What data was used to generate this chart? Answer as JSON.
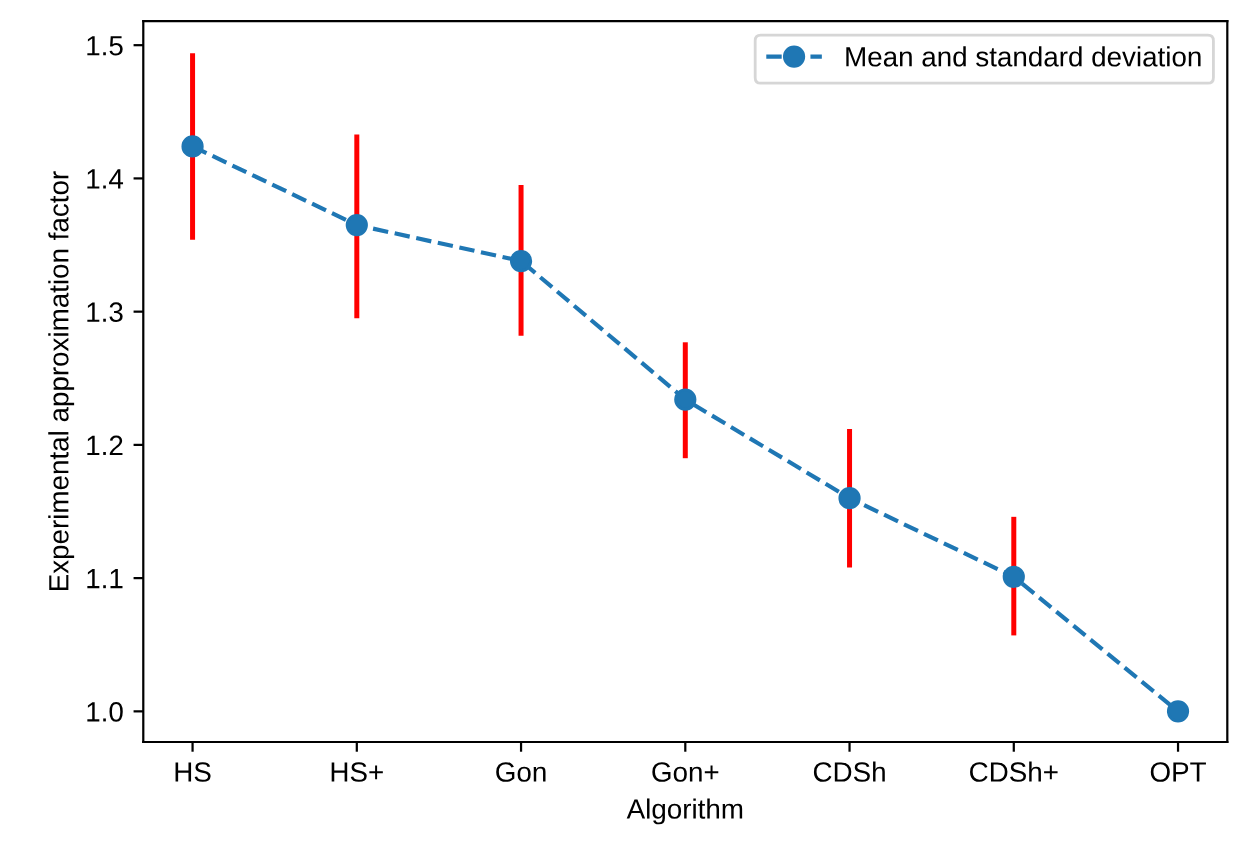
{
  "chart_data": {
    "type": "line",
    "xlabel": "Algorithm",
    "ylabel": "Experimental approximation factor",
    "categories": [
      "HS",
      "HS+",
      "Gon",
      "Gon+",
      "CDSh",
      "CDSh+",
      "OPT"
    ],
    "series": [
      {
        "name": "Mean and standard deviation",
        "color": "#1f77b4",
        "values": [
          1.424,
          1.365,
          1.338,
          1.234,
          1.16,
          1.101,
          1.0
        ],
        "errors": [
          [
            1.354,
            1.494
          ],
          [
            1.295,
            1.433
          ],
          [
            1.282,
            1.395
          ],
          [
            1.19,
            1.277
          ],
          [
            1.108,
            1.212
          ],
          [
            1.057,
            1.146
          ],
          null
        ]
      }
    ],
    "ylim": [
      0.977,
      1.518
    ],
    "yticks": [
      {
        "value": 1.0,
        "label": "1.0"
      },
      1.1,
      1.2,
      1.3,
      1.4,
      1.5
    ],
    "marker": "circle",
    "line_style": "dashed",
    "legend": "top right",
    "grid": false
  }
}
